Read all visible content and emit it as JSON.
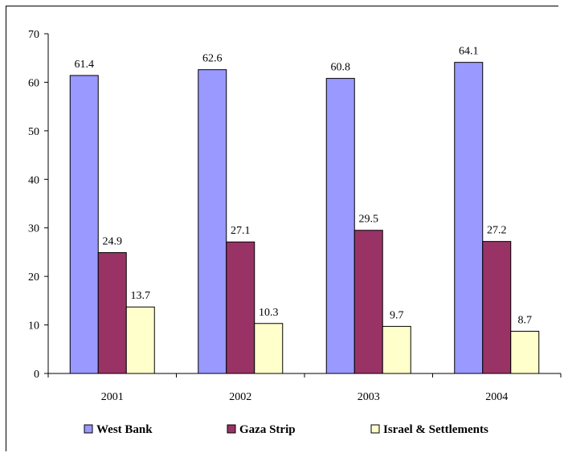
{
  "chart_data": {
    "type": "bar",
    "title": "",
    "xlabel": "",
    "ylabel": "",
    "categories": [
      "2001",
      "2002",
      "2003",
      "2004"
    ],
    "series": [
      {
        "name": "West Bank",
        "values": [
          61.4,
          62.6,
          60.8,
          64.1
        ],
        "color": "#9999ff"
      },
      {
        "name": "Gaza Strip",
        "values": [
          24.9,
          27.1,
          29.5,
          27.2
        ],
        "color": "#993366"
      },
      {
        "name": "Israel & Settlements",
        "values": [
          13.7,
          10.3,
          9.7,
          8.7
        ],
        "color": "#ffffcc"
      }
    ],
    "ylim": [
      0,
      70
    ],
    "yticks": [
      0,
      10,
      20,
      30,
      40,
      50,
      60,
      70
    ],
    "grid": false,
    "legend_position": "bottom"
  }
}
